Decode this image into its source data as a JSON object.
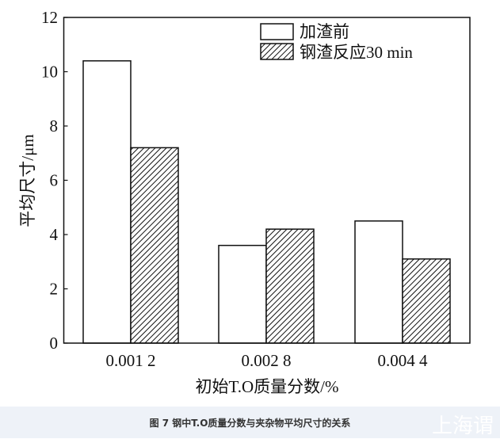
{
  "chart_data": {
    "type": "bar",
    "categories": [
      "0.001 2",
      "0.002 8",
      "0.004 4"
    ],
    "series": [
      {
        "name": "加渣前",
        "values": [
          10.4,
          3.6,
          4.5
        ],
        "fill": "none"
      },
      {
        "name": "钢渣反应30 min",
        "values": [
          7.2,
          4.2,
          3.1
        ],
        "fill": "hatch"
      }
    ],
    "xlabel": "初始T.O质量分数/%",
    "ylabel": "平均尺寸/μm",
    "ylim": [
      0,
      12
    ],
    "yticks": [
      0,
      2,
      4,
      6,
      8,
      10,
      12
    ],
    "grid": false,
    "legend_position": "top-right"
  },
  "caption": "图 7 钢中T.O质量分数与夹杂物平均尺寸的关系",
  "watermark": "上海谓"
}
